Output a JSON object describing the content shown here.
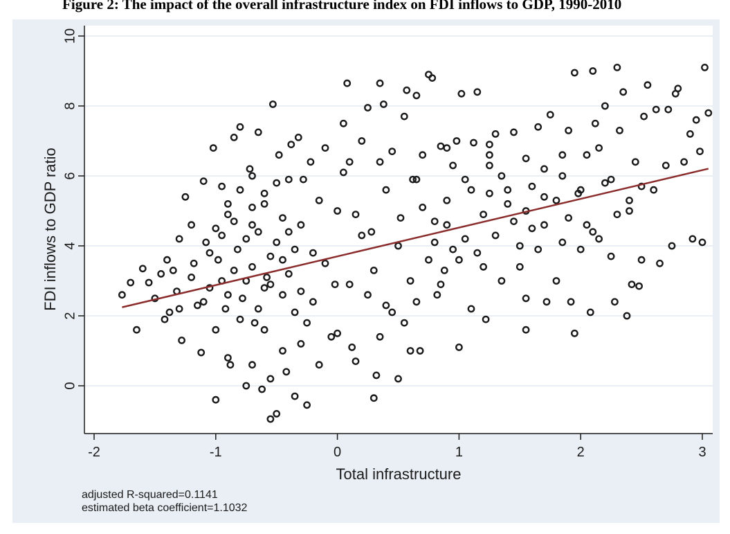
{
  "figure": {
    "title": "Figure 2: The impact of the overall infrastructure index on FDI inflows to GDP, 1990-2010"
  },
  "notes": {
    "r_squared": "adjusted R-squared=0.1141",
    "beta": "estimated beta coefficient=1.1032"
  },
  "chart_data": {
    "type": "scatter",
    "title": "Figure 2: The impact of the overall infrastructure index on FDI inflows to GDP, 1990-2010",
    "xlabel": "Total infrastructure",
    "ylabel": "FDI inflows to GDP ratio",
    "xlim": [
      -2.1,
      3.2
    ],
    "ylim": [
      -1.3,
      10.2
    ],
    "xticks": [
      -2,
      -1,
      0,
      1,
      2,
      3
    ],
    "xtick_labels": [
      "-2",
      "-1",
      "0",
      "1",
      "2",
      "3"
    ],
    "yticks": [
      0,
      2,
      4,
      6,
      8,
      10
    ],
    "ytick_labels": [
      "0",
      "2",
      "4",
      "6",
      "8",
      "10"
    ],
    "grid": "horizontal",
    "colors": {
      "plot_bg": "#ffffff",
      "outer_bg": "#e9eff4",
      "grid": "#e9eff4",
      "marker": "#1a1a1a",
      "fit_line": "#8b2c2c"
    },
    "fit_line": {
      "intercept": 3.7,
      "slope": 0.822,
      "x_range": [
        -1.77,
        3.05
      ],
      "r_squared": 0.1141,
      "beta": 1.1032
    },
    "points": [
      [
        -1.77,
        2.6
      ],
      [
        -1.7,
        2.95
      ],
      [
        -1.65,
        1.6
      ],
      [
        -1.6,
        3.35
      ],
      [
        -1.55,
        2.95
      ],
      [
        -1.5,
        2.5
      ],
      [
        -1.45,
        3.2
      ],
      [
        -1.42,
        1.9
      ],
      [
        -1.4,
        3.6
      ],
      [
        -1.38,
        2.1
      ],
      [
        -1.35,
        3.3
      ],
      [
        -1.32,
        2.7
      ],
      [
        -1.3,
        4.2
      ],
      [
        -1.28,
        1.3
      ],
      [
        -1.25,
        5.4
      ],
      [
        -1.2,
        4.6
      ],
      [
        -1.18,
        3.5
      ],
      [
        -1.15,
        2.3
      ],
      [
        -1.12,
        0.95
      ],
      [
        -1.1,
        5.85
      ],
      [
        -1.08,
        4.1
      ],
      [
        -1.05,
        2.8
      ],
      [
        -1.02,
        6.8
      ],
      [
        -1.0,
        -0.4
      ],
      [
        -0.98,
        3.6
      ],
      [
        -0.95,
        5.7
      ],
      [
        -0.92,
        2.2
      ],
      [
        -0.9,
        4.9
      ],
      [
        -0.88,
        0.6
      ],
      [
        -0.85,
        7.1
      ],
      [
        -0.82,
        3.9
      ],
      [
        -0.8,
        7.4
      ],
      [
        -0.78,
        2.5
      ],
      [
        -0.75,
        0.0
      ],
      [
        -0.72,
        6.2
      ],
      [
        -0.7,
        4.6
      ],
      [
        -0.68,
        1.8
      ],
      [
        -0.65,
        7.25
      ],
      [
        -0.62,
        -0.1
      ],
      [
        -0.6,
        5.2
      ],
      [
        -0.58,
        3.1
      ],
      [
        -0.55,
        -0.95
      ],
      [
        -0.53,
        8.05
      ],
      [
        -0.5,
        -0.8
      ],
      [
        -0.48,
        6.6
      ],
      [
        -0.45,
        2.6
      ],
      [
        -0.42,
        0.4
      ],
      [
        -0.4,
        4.4
      ],
      [
        -0.38,
        6.9
      ],
      [
        -0.35,
        -0.3
      ],
      [
        -0.32,
        7.1
      ],
      [
        -0.3,
        1.2
      ],
      [
        -0.28,
        5.9
      ],
      [
        -0.25,
        -0.55
      ],
      [
        -0.22,
        6.4
      ],
      [
        -0.2,
        3.8
      ],
      [
        -0.15,
        0.6
      ],
      [
        -0.1,
        6.8
      ],
      [
        -0.05,
        1.4
      ],
      [
        -0.02,
        2.9
      ],
      [
        0.0,
        5.0
      ],
      [
        0.05,
        7.5
      ],
      [
        0.08,
        8.65
      ],
      [
        0.1,
        6.4
      ],
      [
        0.12,
        1.1
      ],
      [
        0.15,
        4.9
      ],
      [
        0.2,
        7.0
      ],
      [
        0.25,
        7.95
      ],
      [
        0.28,
        4.4
      ],
      [
        0.3,
        -0.35
      ],
      [
        0.32,
        0.3
      ],
      [
        0.35,
        8.65
      ],
      [
        0.38,
        8.05
      ],
      [
        0.4,
        2.3
      ],
      [
        0.45,
        6.7
      ],
      [
        0.5,
        0.2
      ],
      [
        0.52,
        4.8
      ],
      [
        0.55,
        7.7
      ],
      [
        0.57,
        8.45
      ],
      [
        0.6,
        1.0
      ],
      [
        0.62,
        5.9
      ],
      [
        0.65,
        8.3
      ],
      [
        0.68,
        1.0
      ],
      [
        0.7,
        6.6
      ],
      [
        0.75,
        8.9
      ],
      [
        0.78,
        8.8
      ],
      [
        0.8,
        4.7
      ],
      [
        0.82,
        2.6
      ],
      [
        0.85,
        6.85
      ],
      [
        0.88,
        3.3
      ],
      [
        0.9,
        5.3
      ],
      [
        0.95,
        3.9
      ],
      [
        0.98,
        7.0
      ],
      [
        1.0,
        1.1
      ],
      [
        1.02,
        8.35
      ],
      [
        1.05,
        5.9
      ],
      [
        1.1,
        2.2
      ],
      [
        1.12,
        6.95
      ],
      [
        1.15,
        8.4
      ],
      [
        1.2,
        3.4
      ],
      [
        1.22,
        1.9
      ],
      [
        1.25,
        6.3
      ],
      [
        1.3,
        7.2
      ],
      [
        1.35,
        3.0
      ],
      [
        1.4,
        5.6
      ],
      [
        1.45,
        7.25
      ],
      [
        1.5,
        3.4
      ],
      [
        1.55,
        2.5
      ],
      [
        1.6,
        4.5
      ],
      [
        1.65,
        7.4
      ],
      [
        1.7,
        5.4
      ],
      [
        1.72,
        2.4
      ],
      [
        1.75,
        7.75
      ],
      [
        1.8,
        3.0
      ],
      [
        1.85,
        6.0
      ],
      [
        1.9,
        7.3
      ],
      [
        1.92,
        2.4
      ],
      [
        1.95,
        1.5
      ],
      [
        1.98,
        5.5
      ],
      [
        2.0,
        3.9
      ],
      [
        2.05,
        6.6
      ],
      [
        2.08,
        2.1
      ],
      [
        2.1,
        9.0
      ],
      [
        2.12,
        7.5
      ],
      [
        2.15,
        4.2
      ],
      [
        2.2,
        8.0
      ],
      [
        2.25,
        5.9
      ],
      [
        2.28,
        2.4
      ],
      [
        2.3,
        9.1
      ],
      [
        2.32,
        7.3
      ],
      [
        2.35,
        8.4
      ],
      [
        2.38,
        2.0
      ],
      [
        2.4,
        5.0
      ],
      [
        2.42,
        2.9
      ],
      [
        2.45,
        6.4
      ],
      [
        2.48,
        2.85
      ],
      [
        2.5,
        3.6
      ],
      [
        2.52,
        7.7
      ],
      [
        2.55,
        8.6
      ],
      [
        2.6,
        5.6
      ],
      [
        2.62,
        7.9
      ],
      [
        2.65,
        3.5
      ],
      [
        2.7,
        6.3
      ],
      [
        2.72,
        7.9
      ],
      [
        2.75,
        4.0
      ],
      [
        2.78,
        8.35
      ],
      [
        2.8,
        8.5
      ],
      [
        2.85,
        6.4
      ],
      [
        2.9,
        7.2
      ],
      [
        2.92,
        4.2
      ],
      [
        2.95,
        7.6
      ],
      [
        2.98,
        6.7
      ],
      [
        3.0,
        4.1
      ],
      [
        3.02,
        9.1
      ],
      [
        3.05,
        7.8
      ],
      [
        1.55,
        1.6
      ],
      [
        1.95,
        8.95
      ],
      [
        1.25,
        6.6
      ],
      [
        0.9,
        6.8
      ],
      [
        1.7,
        6.2
      ],
      [
        -0.7,
        3.4
      ],
      [
        -0.6,
        2.8
      ],
      [
        -0.9,
        2.6
      ],
      [
        -0.5,
        4.1
      ],
      [
        -0.8,
        1.9
      ],
      [
        -0.4,
        3.2
      ],
      [
        -1.0,
        4.5
      ],
      [
        -0.7,
        5.1
      ],
      [
        -0.3,
        2.7
      ],
      [
        -0.65,
        2.2
      ],
      [
        -0.85,
        3.3
      ],
      [
        -0.55,
        3.7
      ],
      [
        -0.95,
        3.0
      ],
      [
        -0.45,
        4.8
      ],
      [
        -0.75,
        4.2
      ],
      [
        -0.6,
        1.6
      ],
      [
        -0.35,
        3.9
      ],
      [
        -0.2,
        2.4
      ],
      [
        -0.1,
        3.5
      ],
      [
        0.1,
        2.9
      ],
      [
        0.2,
        4.3
      ],
      [
        0.3,
        3.3
      ],
      [
        0.4,
        5.6
      ],
      [
        0.5,
        4.0
      ],
      [
        0.6,
        3.0
      ],
      [
        0.7,
        5.1
      ],
      [
        0.8,
        4.1
      ],
      [
        0.9,
        4.6
      ],
      [
        1.0,
        3.6
      ],
      [
        1.1,
        5.6
      ],
      [
        1.2,
        4.9
      ],
      [
        1.3,
        4.3
      ],
      [
        1.4,
        5.2
      ],
      [
        1.5,
        4.0
      ],
      [
        1.6,
        5.7
      ],
      [
        1.7,
        4.6
      ],
      [
        1.8,
        5.3
      ],
      [
        1.9,
        4.8
      ],
      [
        2.0,
        5.6
      ],
      [
        2.1,
        4.4
      ],
      [
        2.2,
        5.8
      ],
      [
        2.3,
        4.9
      ],
      [
        2.4,
        5.3
      ],
      [
        2.5,
        5.7
      ],
      [
        1.35,
        6.0
      ],
      [
        1.55,
        5.0
      ],
      [
        0.75,
        3.6
      ],
      [
        0.45,
        2.1
      ],
      [
        -1.1,
        2.4
      ],
      [
        -1.2,
        3.1
      ],
      [
        -1.3,
        2.2
      ],
      [
        -1.0,
        1.6
      ],
      [
        -0.9,
        0.8
      ],
      [
        -0.7,
        0.6
      ],
      [
        -0.55,
        0.2
      ],
      [
        -0.45,
        1.0
      ],
      [
        -0.25,
        1.8
      ],
      [
        0.0,
        1.5
      ],
      [
        0.15,
        0.7
      ],
      [
        0.25,
        2.6
      ],
      [
        0.35,
        1.4
      ],
      [
        0.55,
        1.8
      ],
      [
        0.65,
        2.4
      ],
      [
        0.85,
        2.9
      ],
      [
        -0.8,
        5.6
      ],
      [
        -0.6,
        5.5
      ],
      [
        -0.5,
        5.8
      ],
      [
        -0.7,
        6.0
      ],
      [
        -0.9,
        5.2
      ],
      [
        -0.4,
        5.9
      ],
      [
        -0.3,
        4.6
      ],
      [
        -0.15,
        5.3
      ],
      [
        -1.05,
        3.8
      ],
      [
        -0.95,
        4.3
      ],
      [
        -0.85,
        4.7
      ],
      [
        -0.75,
        3.0
      ],
      [
        -0.65,
        4.4
      ],
      [
        -0.55,
        2.9
      ],
      [
        -0.45,
        3.6
      ],
      [
        -0.35,
        2.1
      ],
      [
        1.05,
        4.2
      ],
      [
        1.15,
        3.8
      ],
      [
        1.25,
        5.5
      ],
      [
        1.45,
        4.7
      ],
      [
        1.65,
        3.9
      ],
      [
        1.85,
        4.1
      ],
      [
        2.05,
        4.6
      ],
      [
        2.25,
        3.7
      ],
      [
        0.05,
        6.1
      ],
      [
        0.35,
        6.4
      ],
      [
        0.65,
        5.9
      ],
      [
        0.95,
        6.3
      ],
      [
        1.25,
        6.9
      ],
      [
        1.55,
        6.5
      ],
      [
        1.85,
        6.6
      ],
      [
        2.15,
        6.8
      ]
    ]
  }
}
